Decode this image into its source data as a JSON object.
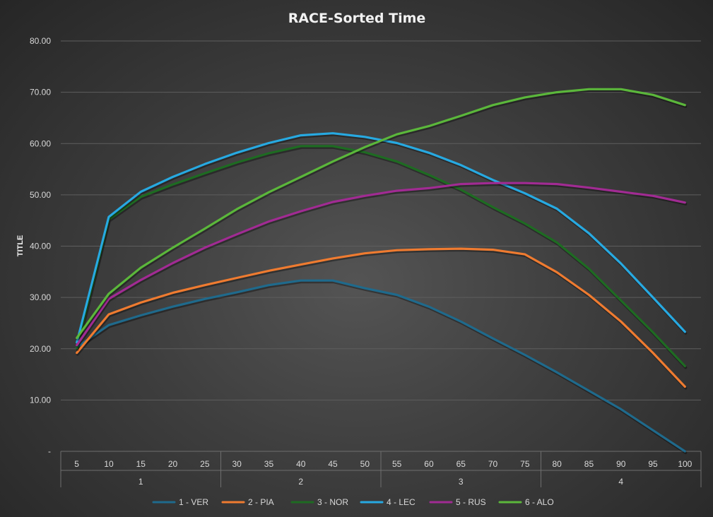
{
  "chart_data": {
    "type": "line",
    "title": "RACE-Sorted Time",
    "ylabel": "TITLE",
    "xlabel": "",
    "ylim": [
      0,
      80
    ],
    "y_ticks": [
      "-",
      "10.00",
      "20.00",
      "30.00",
      "40.00",
      "50.00",
      "60.00",
      "70.00",
      "80.00"
    ],
    "x": [
      5,
      10,
      15,
      20,
      25,
      30,
      35,
      40,
      45,
      50,
      55,
      60,
      65,
      70,
      75,
      80,
      85,
      90,
      95,
      100
    ],
    "groups": [
      {
        "label": "1",
        "from": 5,
        "to": 25
      },
      {
        "label": "2",
        "from": 30,
        "to": 50
      },
      {
        "label": "3",
        "from": 55,
        "to": 75
      },
      {
        "label": "4",
        "from": 80,
        "to": 100
      }
    ],
    "grid": true,
    "legend_position": "bottom",
    "series": [
      {
        "name": "1 - VER",
        "color": "#1f6a8c",
        "values": [
          20.3,
          24.6,
          26.5,
          28.2,
          29.7,
          31.0,
          32.4,
          33.3,
          33.3,
          31.8,
          30.5,
          28.2,
          25.3,
          22.0,
          18.8,
          15.4,
          11.8,
          8.2,
          4.1,
          0.0
        ]
      },
      {
        "name": "2 - PIA",
        "color": "#ef7b30",
        "values": [
          19.2,
          26.7,
          29.0,
          30.9,
          32.4,
          33.8,
          35.2,
          36.4,
          37.6,
          38.6,
          39.2,
          39.4,
          39.5,
          39.3,
          38.4,
          34.9,
          30.5,
          25.3,
          19.2,
          12.6
        ]
      },
      {
        "name": "3 - NOR",
        "color": "#1e6b22",
        "values": [
          20.1,
          45.2,
          49.6,
          52.0,
          54.2,
          56.3,
          58.1,
          59.5,
          59.5,
          58.3,
          56.5,
          53.9,
          51.0,
          47.6,
          44.4,
          40.7,
          35.6,
          29.4,
          23.2,
          16.6
        ]
      },
      {
        "name": "4 - LEC",
        "color": "#27a9e1",
        "values": [
          21.2,
          45.7,
          50.6,
          53.5,
          56.0,
          58.2,
          60.1,
          61.6,
          62.0,
          61.3,
          60.1,
          58.2,
          55.8,
          52.9,
          50.3,
          47.3,
          42.5,
          36.6,
          30.0,
          23.3
        ]
      },
      {
        "name": "5 - RUS",
        "color": "#a12b93",
        "values": [
          20.7,
          29.7,
          33.4,
          36.7,
          39.7,
          42.3,
          44.8,
          46.8,
          48.6,
          49.8,
          50.8,
          51.3,
          52.1,
          52.3,
          52.3,
          52.1,
          51.4,
          50.6,
          49.8,
          48.5
        ]
      },
      {
        "name": "6 - ALO",
        "color": "#5bb73b",
        "values": [
          22.1,
          30.7,
          35.8,
          39.7,
          43.4,
          47.2,
          50.5,
          53.5,
          56.5,
          59.3,
          61.8,
          63.4,
          65.4,
          67.5,
          69.0,
          70.0,
          70.6,
          70.6,
          69.5,
          67.5
        ]
      }
    ]
  }
}
